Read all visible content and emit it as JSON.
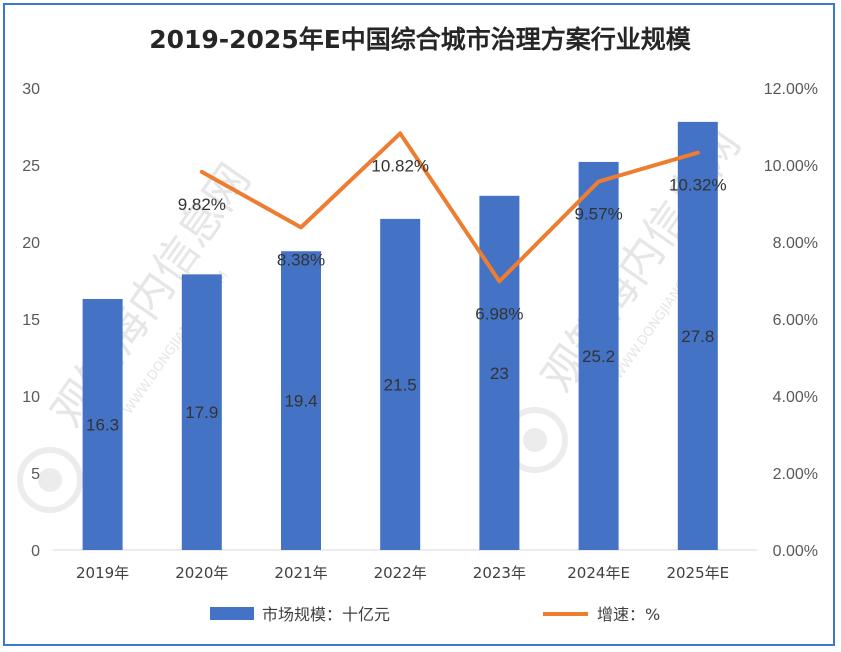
{
  "chart_data": {
    "type": "bar",
    "title": "2019-2025年E中国综合城市治理方案行业规模",
    "categories": [
      "2019年",
      "2020年",
      "2021年",
      "2022年",
      "2023年",
      "2024年E",
      "2025年E"
    ],
    "series": [
      {
        "name": "市场规模：十亿元",
        "type": "bar",
        "axis": "left",
        "color": "#4472c4",
        "values": [
          16.3,
          17.9,
          19.4,
          21.5,
          23,
          25.2,
          27.8
        ],
        "labels": [
          "16.3",
          "17.9",
          "19.4",
          "21.5",
          "23",
          "25.2",
          "27.8"
        ]
      },
      {
        "name": "增速：%",
        "type": "line",
        "axis": "right",
        "color": "#ed7d31",
        "values": [
          null,
          9.82,
          8.38,
          10.82,
          6.98,
          9.57,
          10.32
        ],
        "labels": [
          "",
          "9.82%",
          "8.38%",
          "10.82%",
          "6.98%",
          "9.57%",
          "10.32%"
        ]
      }
    ],
    "y_left": {
      "lim": [
        0,
        30
      ],
      "ticks": [
        "0",
        "5",
        "10",
        "15",
        "20",
        "25",
        "30"
      ]
    },
    "y_right": {
      "lim": [
        0,
        12
      ],
      "ticks": [
        "0.00%",
        "2.00%",
        "4.00%",
        "6.00%",
        "8.00%",
        "10.00%",
        "12.00%"
      ]
    },
    "grid": false,
    "legend_position": "bottom"
  },
  "watermark": {
    "text_cn": "观知海内信息网",
    "text_en": "WWW.DONGJIANGDB.COM"
  }
}
